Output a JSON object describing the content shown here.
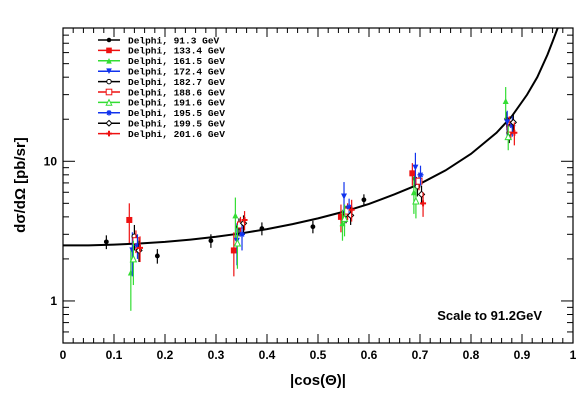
{
  "chart_data": {
    "type": "scatter",
    "title": "",
    "xlabel": "|cos(Θ)|",
    "ylabel": "dσ/dΩ [pb/sr]",
    "xlim": [
      0,
      1
    ],
    "ylim": [
      0.5,
      90
    ],
    "y_scale": "log",
    "x_ticks": [
      "0",
      "0.1",
      "0.2",
      "0.3",
      "0.4",
      "0.5",
      "0.6",
      "0.7",
      "0.8",
      "0.9",
      "1"
    ],
    "y_ticks": [
      "1",
      "10"
    ],
    "grid": false,
    "legend_position": "top-left",
    "annotation": "Scale to 91.2GeV",
    "fit_curve": {
      "x": [
        0,
        0.05,
        0.1,
        0.15,
        0.2,
        0.25,
        0.3,
        0.35,
        0.4,
        0.45,
        0.5,
        0.55,
        0.6,
        0.65,
        0.7,
        0.75,
        0.8,
        0.85,
        0.88,
        0.91,
        0.93,
        0.95,
        0.96,
        0.97
      ],
      "y": [
        2.5,
        2.5,
        2.53,
        2.58,
        2.65,
        2.75,
        2.88,
        3.05,
        3.27,
        3.55,
        3.9,
        4.35,
        4.95,
        5.8,
        6.9,
        8.6,
        11.3,
        16.0,
        21.0,
        30.0,
        40.0,
        58.0,
        72.0,
        90.0
      ]
    },
    "series": [
      {
        "name": "Delphi,  91.3 GeV",
        "color": "#000000",
        "marker": "filled-circle",
        "points": [
          [
            0.085,
            2.65,
            0.3
          ],
          [
            0.185,
            2.1,
            0.25
          ],
          [
            0.29,
            2.7,
            0.3
          ],
          [
            0.39,
            3.3,
            0.35
          ],
          [
            0.49,
            3.4,
            0.35
          ],
          [
            0.59,
            5.3,
            0.5
          ],
          [
            0.69,
            7.5,
            1.0
          ],
          [
            0.87,
            20.0,
            2.5
          ]
        ]
      },
      {
        "name": "Delphi, 133.4 GeV",
        "color": "#ee1111",
        "marker": "filled-square",
        "points": [
          [
            0.13,
            3.8,
            1.2
          ],
          [
            0.335,
            2.3,
            0.8
          ],
          [
            0.545,
            4.0,
            0.9
          ],
          [
            0.685,
            8.2,
            1.5
          ],
          [
            0.875,
            17.5,
            3.5
          ]
        ]
      },
      {
        "name": "Delphi, 161.5 GeV",
        "color": "#33dd33",
        "marker": "filled-triangle-up",
        "points": [
          [
            0.133,
            1.6,
            0.75
          ],
          [
            0.338,
            4.1,
            1.4
          ],
          [
            0.548,
            3.6,
            0.9
          ],
          [
            0.688,
            6.0,
            1.8
          ],
          [
            0.868,
            27.0,
            7.0
          ]
        ]
      },
      {
        "name": "Delphi, 172.4 GeV",
        "color": "#1133ee",
        "marker": "filled-triangle-down",
        "points": [
          [
            0.136,
            2.3,
            0.8
          ],
          [
            0.341,
            2.7,
            0.9
          ],
          [
            0.551,
            5.6,
            1.5
          ],
          [
            0.691,
            9.0,
            2.5
          ],
          [
            0.871,
            19.0,
            4.0
          ]
        ]
      },
      {
        "name": "Delphi, 182.7 GeV",
        "color": "#000000",
        "marker": "open-circle",
        "points": [
          [
            0.14,
            2.9,
            0.6
          ],
          [
            0.345,
            3.4,
            0.5
          ],
          [
            0.555,
            4.2,
            0.6
          ],
          [
            0.695,
            6.6,
            1.0
          ],
          [
            0.875,
            16.0,
            2.5
          ]
        ]
      },
      {
        "name": "Delphi, 188.6 GeV",
        "color": "#ee1111",
        "marker": "open-square",
        "points": [
          [
            0.143,
            2.7,
            0.5
          ],
          [
            0.348,
            3.5,
            0.5
          ],
          [
            0.558,
            4.4,
            0.6
          ],
          [
            0.698,
            7.2,
            1.0
          ],
          [
            0.878,
            17.0,
            2.5
          ]
        ]
      },
      {
        "name": "Delphi, 191.6 GeV",
        "color": "#33dd33",
        "marker": "open-triangle-up",
        "points": [
          [
            0.138,
            2.0,
            0.7
          ],
          [
            0.342,
            2.6,
            0.9
          ],
          [
            0.552,
            3.9,
            1.0
          ],
          [
            0.692,
            5.2,
            1.3
          ],
          [
            0.873,
            15.0,
            3.0
          ]
        ]
      },
      {
        "name": "Delphi, 195.5 GeV",
        "color": "#1133ee",
        "marker": "star",
        "points": [
          [
            0.146,
            2.5,
            0.5
          ],
          [
            0.351,
            3.0,
            0.7
          ],
          [
            0.561,
            4.7,
            0.7
          ],
          [
            0.701,
            8.0,
            1.3
          ],
          [
            0.881,
            18.0,
            3.0
          ]
        ]
      },
      {
        "name": "Delphi, 199.5 GeV",
        "color": "#000000",
        "marker": "open-diamond",
        "points": [
          [
            0.149,
            2.3,
            0.4
          ],
          [
            0.354,
            3.6,
            0.5
          ],
          [
            0.564,
            4.1,
            0.6
          ],
          [
            0.703,
            5.8,
            0.9
          ],
          [
            0.883,
            19.0,
            3.0
          ]
        ]
      },
      {
        "name": "Delphi, 201.6 GeV",
        "color": "#ee1111",
        "marker": "cross",
        "points": [
          [
            0.151,
            2.4,
            0.5
          ],
          [
            0.356,
            3.8,
            0.6
          ],
          [
            0.566,
            4.5,
            0.8
          ],
          [
            0.706,
            5.0,
            1.0
          ],
          [
            0.885,
            16.0,
            3.0
          ]
        ]
      }
    ]
  }
}
